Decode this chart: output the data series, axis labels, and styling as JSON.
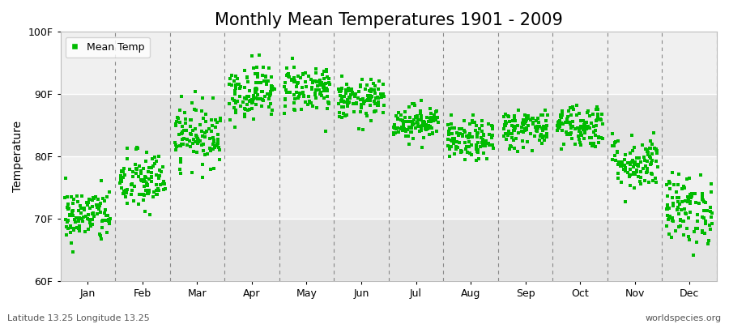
{
  "title": "Monthly Mean Temperatures 1901 - 2009",
  "ylabel": "Temperature",
  "ylim": [
    60,
    100
  ],
  "yticks": [
    60,
    70,
    80,
    90,
    100
  ],
  "ytick_labels": [
    "60F",
    "70F",
    "80F",
    "90F",
    "100F"
  ],
  "months": [
    "Jan",
    "Feb",
    "Mar",
    "Apr",
    "May",
    "Jun",
    "Jul",
    "Aug",
    "Sep",
    "Oct",
    "Nov",
    "Dec"
  ],
  "n_years": 109,
  "dot_color": "#00bb00",
  "bg_color": "#f0f0f0",
  "bg_band_dark": "#e4e4e4",
  "bg_band_light": "#f0f0f0",
  "mean_temps": [
    70.5,
    76.0,
    83.5,
    90.5,
    91.0,
    89.0,
    85.5,
    82.5,
    84.5,
    85.0,
    79.0,
    71.5
  ],
  "temp_spread": [
    2.2,
    2.5,
    2.5,
    2.2,
    2.0,
    1.6,
    1.4,
    1.6,
    1.6,
    1.8,
    2.2,
    2.8
  ],
  "footer_left": "Latitude 13.25 Longitude 13.25",
  "footer_right": "worldspecies.org",
  "legend_label": "Mean Temp",
  "title_fontsize": 15,
  "axis_fontsize": 10,
  "tick_fontsize": 9,
  "footer_fontsize": 8,
  "legend_fontsize": 9,
  "marker_size": 3.5
}
